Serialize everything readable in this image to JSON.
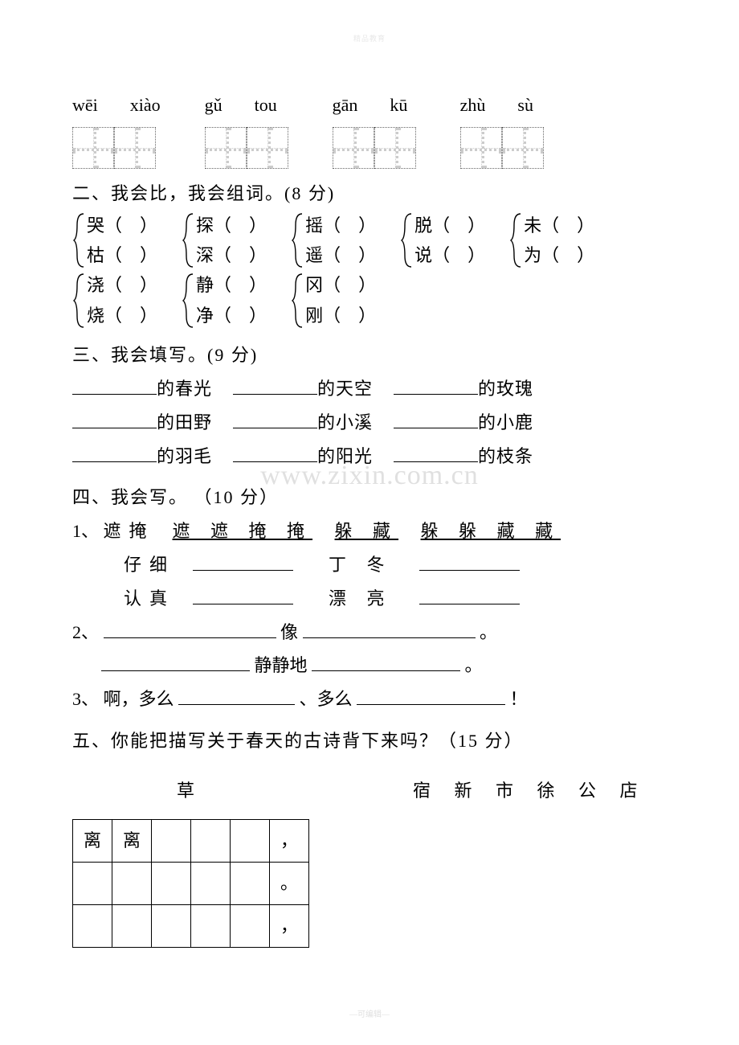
{
  "watermarks": {
    "top": "精品教育",
    "center": "www.zixin.com.cn",
    "bottom": "—可编辑—"
  },
  "pinyin": [
    {
      "a": "wēi",
      "b": "xiào"
    },
    {
      "a": "gǔ",
      "b": "tou"
    },
    {
      "a": "gān",
      "b": "kū"
    },
    {
      "a": "zhù",
      "b": "sù"
    }
  ],
  "sec2": {
    "title": "二、我会比，我会组词。(8 分)",
    "pairs": [
      [
        "哭",
        "枯"
      ],
      [
        "探",
        "深"
      ],
      [
        "摇",
        "遥"
      ],
      [
        "脱",
        "说"
      ],
      [
        "未",
        "为"
      ],
      [
        "浇",
        "烧"
      ],
      [
        "静",
        "净"
      ],
      [
        "冈",
        "刚"
      ]
    ]
  },
  "sec3": {
    "title": "三、我会填写。(9 分)",
    "items": [
      "的春光",
      "的天空",
      "的玫瑰",
      "的田野",
      "的小溪",
      "的小鹿",
      "的羽毛",
      "的阳光",
      "的枝条"
    ]
  },
  "sec4": {
    "title": "四、我会写。 （10 分）",
    "row1": {
      "no": "1、",
      "a": "遮掩",
      "au": "遮 遮 掩 掩",
      "b": "躲 藏",
      "bu": "躲 躲 藏 藏"
    },
    "row2": {
      "a": "仔细",
      "b": "丁 冬"
    },
    "row3": {
      "a": "认真",
      "b": "漂 亮"
    },
    "line2": {
      "no": "2、",
      "mid": "像",
      "end": "。"
    },
    "line2b": {
      "mid": "静静地",
      "end": "。"
    },
    "line3": {
      "no": "3、",
      "a": "啊，多么",
      "b": "、多么",
      "end": "！"
    }
  },
  "sec5": {
    "title": "五、你能把描写关于春天的古诗背下来吗？（15 分）",
    "poemA": "草",
    "poemB": "宿 新 市 徐 公 店",
    "grid": [
      [
        "离",
        "离",
        "",
        "",
        "",
        "，"
      ],
      [
        "",
        "",
        "",
        "",
        "",
        "。"
      ],
      [
        "",
        "",
        "",
        "",
        "",
        "，"
      ]
    ]
  }
}
